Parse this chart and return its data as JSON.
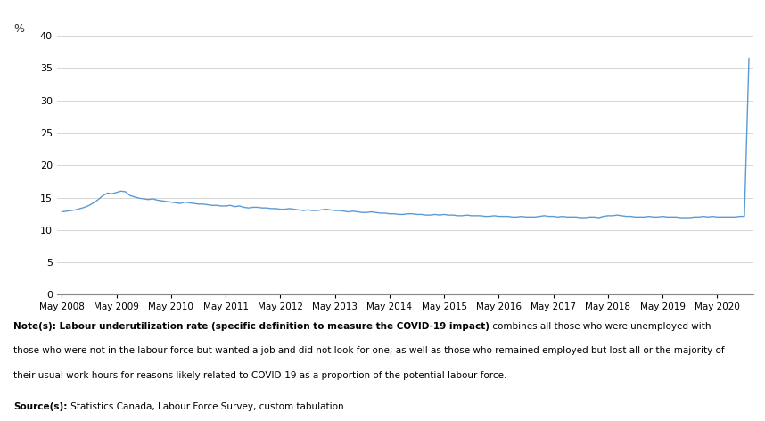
{
  "ylabel": "%",
  "ylim": [
    0,
    40
  ],
  "yticks": [
    0,
    5,
    10,
    15,
    20,
    25,
    30,
    35,
    40
  ],
  "line_color": "#5B9BD5",
  "background_color": "#ffffff",
  "x_labels": [
    "May 2008",
    "May 2009",
    "May 2010",
    "May 2011",
    "May 2012",
    "May 2013",
    "May 2014",
    "May 2015",
    "May 2016",
    "May 2017",
    "May 2018",
    "May 2019",
    "May 2020"
  ],
  "note_bold": "Note(s): Labour underutilization rate (specific definition to measure the COVID-19 impact)",
  "note_regular": " combines all those who were unemployed with those who were not in the labour force but wanted a job and did not look for one; as well as those who remained employed but lost all or the majority of their usual work hours for reasons likely related to COVID-19 as a proportion of the potential labour force.",
  "source_bold": "Source(s):",
  "source_regular": " Statistics Canada, Labour Force Survey, custom tabulation.",
  "data": [
    12.8,
    12.9,
    13.0,
    13.1,
    13.3,
    13.5,
    13.8,
    14.2,
    14.7,
    15.3,
    15.7,
    15.6,
    15.8,
    16.0,
    15.9,
    15.3,
    15.1,
    14.9,
    14.8,
    14.7,
    14.8,
    14.6,
    14.5,
    14.4,
    14.3,
    14.2,
    14.1,
    14.3,
    14.2,
    14.1,
    14.0,
    14.0,
    13.9,
    13.8,
    13.8,
    13.7,
    13.7,
    13.8,
    13.6,
    13.7,
    13.5,
    13.4,
    13.5,
    13.5,
    13.4,
    13.4,
    13.3,
    13.3,
    13.2,
    13.2,
    13.3,
    13.2,
    13.1,
    13.0,
    13.1,
    13.0,
    13.0,
    13.1,
    13.2,
    13.1,
    13.0,
    13.0,
    12.9,
    12.8,
    12.9,
    12.8,
    12.7,
    12.7,
    12.8,
    12.7,
    12.6,
    12.6,
    12.5,
    12.5,
    12.4,
    12.4,
    12.5,
    12.5,
    12.4,
    12.4,
    12.3,
    12.3,
    12.4,
    12.3,
    12.4,
    12.3,
    12.3,
    12.2,
    12.2,
    12.3,
    12.2,
    12.2,
    12.2,
    12.1,
    12.1,
    12.2,
    12.1,
    12.1,
    12.1,
    12.0,
    12.0,
    12.1,
    12.0,
    12.0,
    12.0,
    12.1,
    12.2,
    12.1,
    12.1,
    12.0,
    12.1,
    12.0,
    12.0,
    12.0,
    11.9,
    11.9,
    12.0,
    12.0,
    11.9,
    12.1,
    12.2,
    12.2,
    12.3,
    12.2,
    12.1,
    12.1,
    12.0,
    12.0,
    12.0,
    12.1,
    12.0,
    12.0,
    12.1,
    12.0,
    12.0,
    12.0,
    11.9,
    11.9,
    11.9,
    12.0,
    12.0,
    12.1,
    12.0,
    12.1,
    12.0,
    12.0,
    12.0,
    12.0,
    12.0,
    12.1,
    12.1,
    36.5
  ]
}
